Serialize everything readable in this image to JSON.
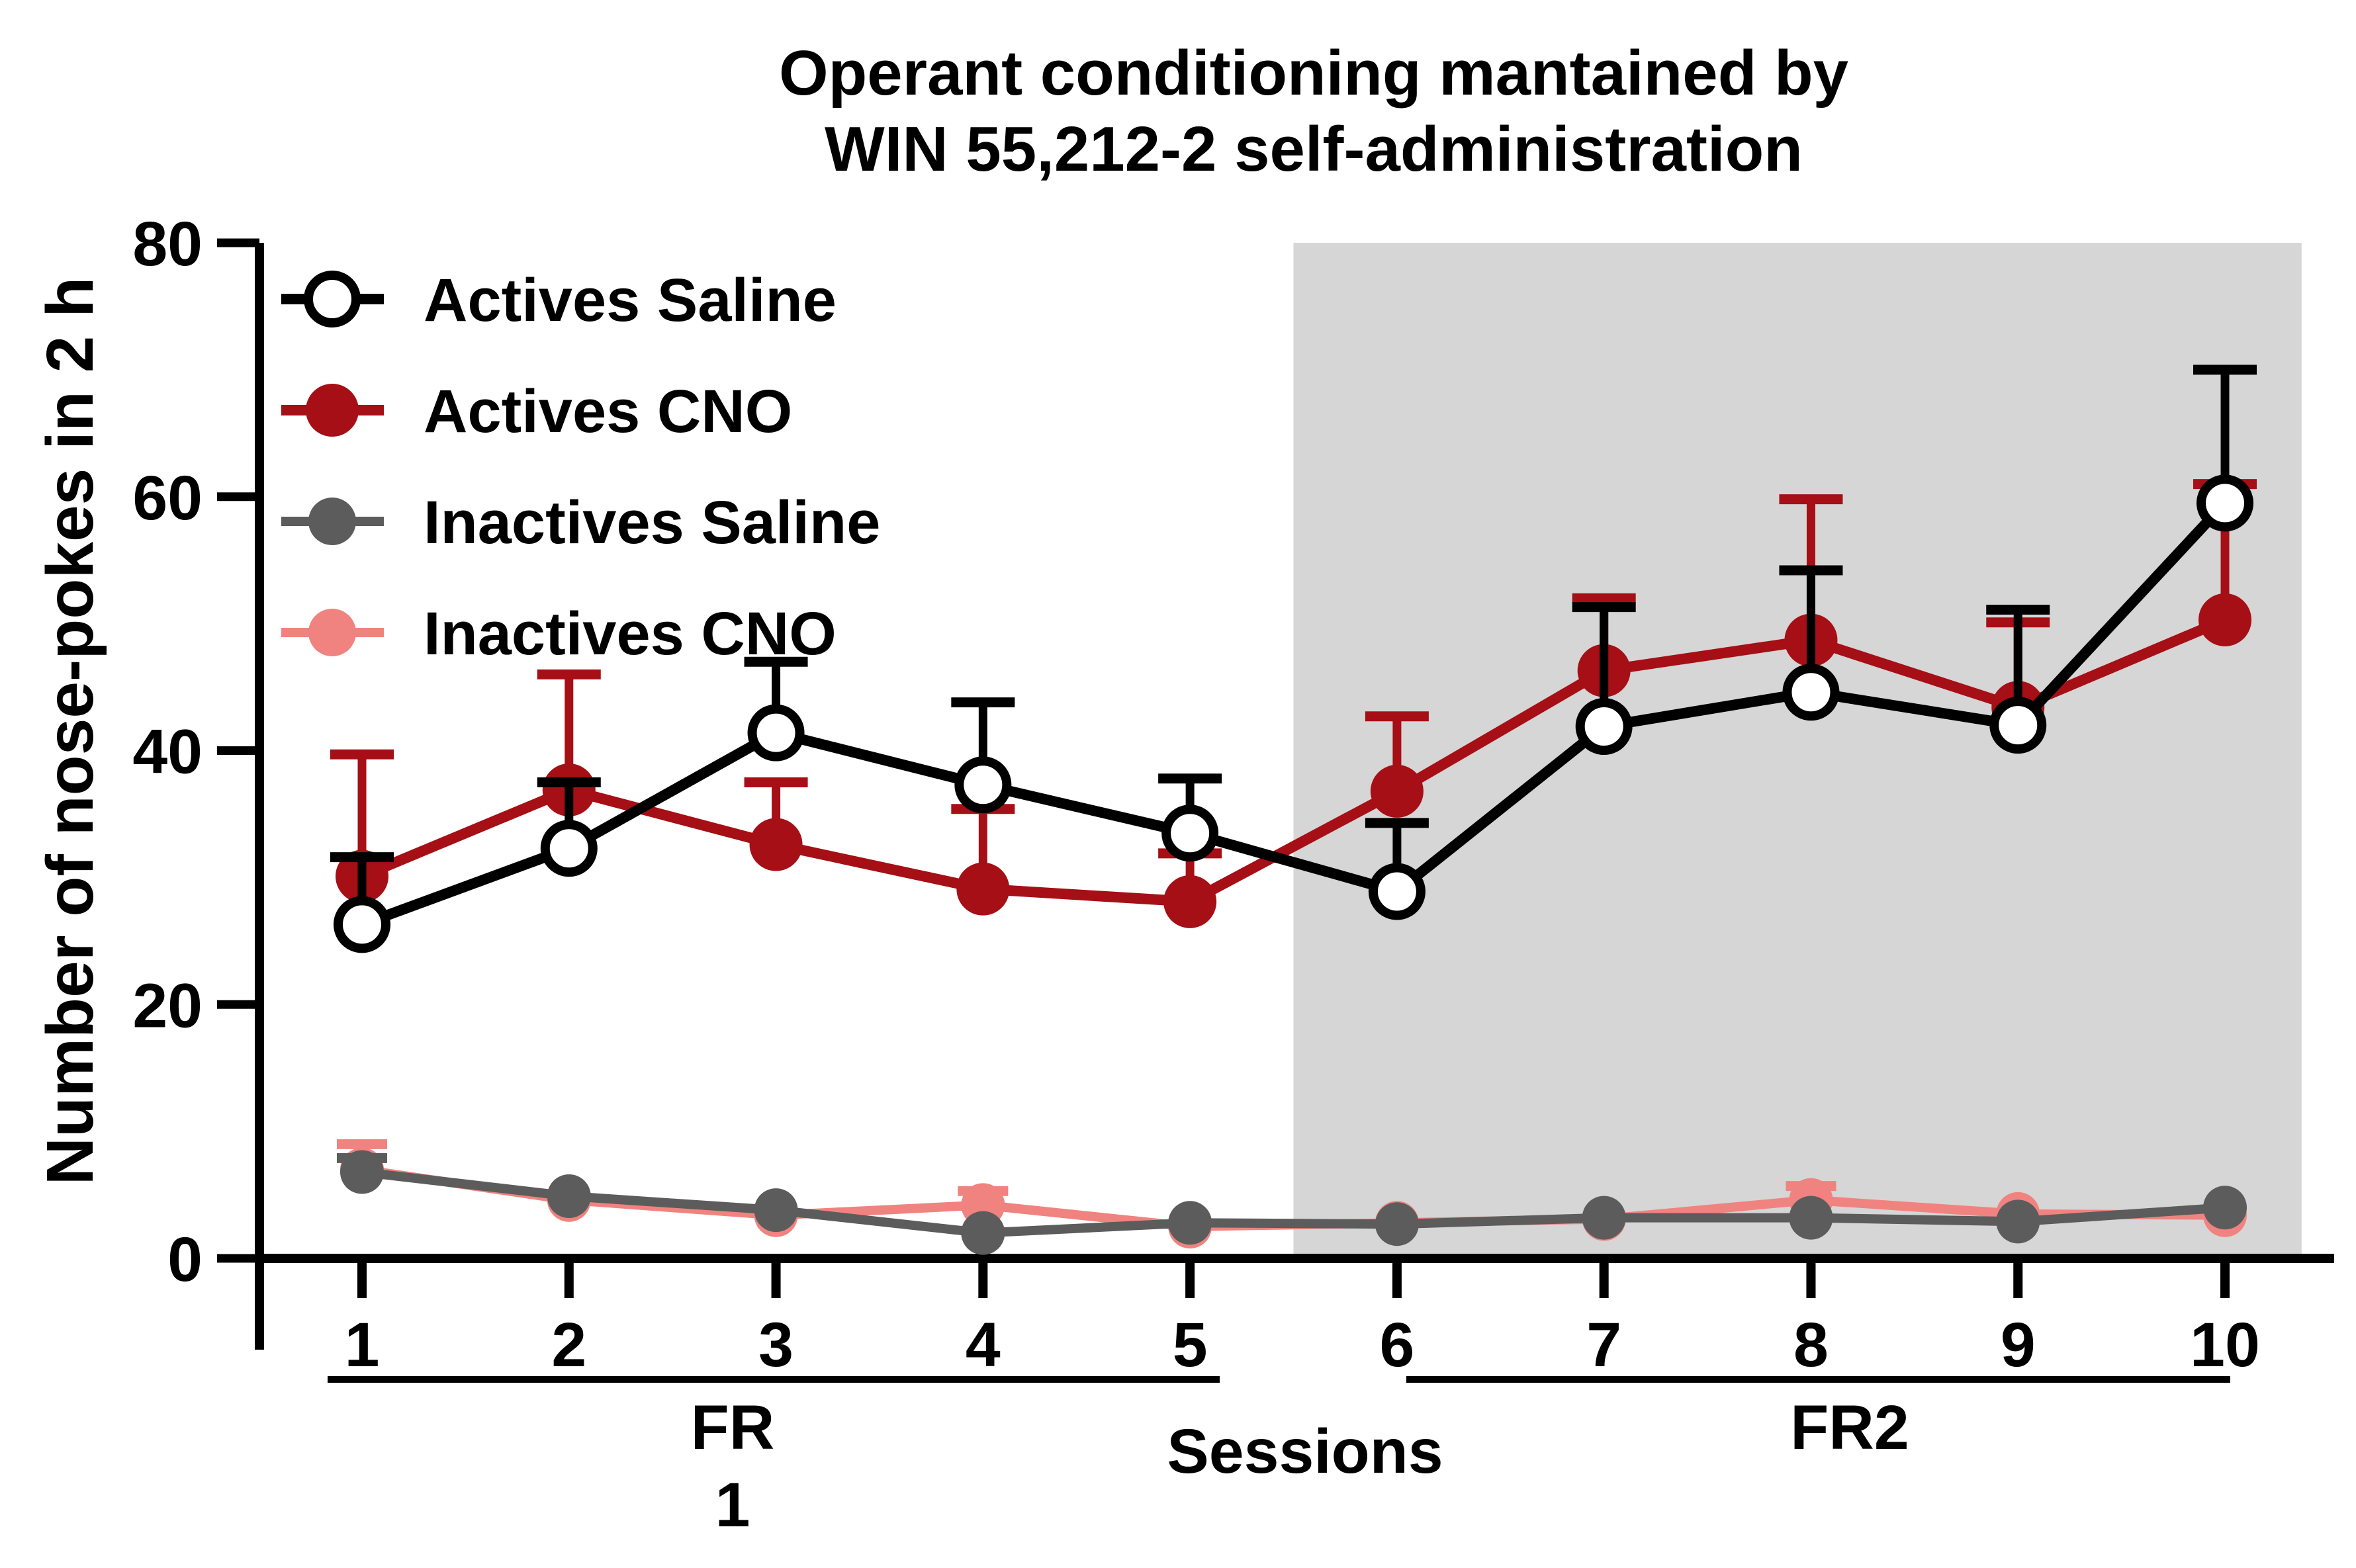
{
  "chart_data": {
    "type": "line",
    "title_line1": "Operant conditioning mantained by",
    "title_line2": "WIN 55,212-2 self-administration",
    "xlabel": "Sessions",
    "ylabel": "Number of nose-pokes in 2 h",
    "ylim": [
      0,
      80
    ],
    "yticks": [
      0,
      20,
      40,
      60,
      80
    ],
    "x": [
      1,
      2,
      3,
      4,
      5,
      6,
      7,
      8,
      9,
      10
    ],
    "grid": false,
    "legend_position": "top-left-inside",
    "shaded_region": {
      "from_session": 5.5,
      "to_session": 10.37,
      "color": "#D6D6D6",
      "meaning": "FR2 phase sessions 6-10"
    },
    "phases": {
      "fr1": {
        "line1": "FR",
        "line2": "1",
        "sessions": [
          1,
          5
        ]
      },
      "fr2": {
        "label": "FR2",
        "sessions": [
          6,
          10
        ]
      }
    },
    "series": [
      {
        "name": "Actives Saline",
        "marker": "open-circle",
        "color": "#000000",
        "fill": "#FFFFFF",
        "values": [
          26.3,
          32.3,
          41.4,
          37.3,
          33.5,
          28.9,
          41.9,
          44.6,
          42.0,
          59.5
        ],
        "err_top": [
          31.6,
          37.5,
          47.0,
          43.8,
          37.8,
          34.3,
          51.3,
          54.2,
          51.1,
          70.0
        ]
      },
      {
        "name": "Actives CNO",
        "marker": "filled-circle",
        "color": "#A50F15",
        "fill": "#A50F15",
        "values": [
          30.1,
          36.9,
          32.6,
          29.1,
          28.1,
          36.8,
          46.3,
          48.7,
          43.4,
          50.3
        ],
        "err_top": [
          39.7,
          46.0,
          37.5,
          35.4,
          31.9,
          42.7,
          52.0,
          59.8,
          50.1,
          61.0
        ]
      },
      {
        "name": "Inactives Saline",
        "marker": "filled-circle",
        "color": "#5C5C5C",
        "fill": "#5C5C5C",
        "values": [
          6.8,
          4.9,
          3.8,
          2.0,
          2.8,
          2.7,
          3.2,
          3.2,
          2.9,
          4.0
        ],
        "err_top": [
          7.9,
          null,
          null,
          null,
          null,
          null,
          null,
          null,
          null,
          null
        ]
      },
      {
        "name": "Inactives CNO",
        "marker": "filled-circle",
        "color": "#F0837F",
        "fill": "#F0837F",
        "values": [
          7.0,
          4.6,
          3.4,
          4.2,
          2.5,
          2.8,
          3.1,
          4.6,
          3.5,
          3.4
        ],
        "err_top": [
          9.0,
          null,
          null,
          5.3,
          null,
          null,
          null,
          5.7,
          null,
          null
        ]
      }
    ]
  }
}
